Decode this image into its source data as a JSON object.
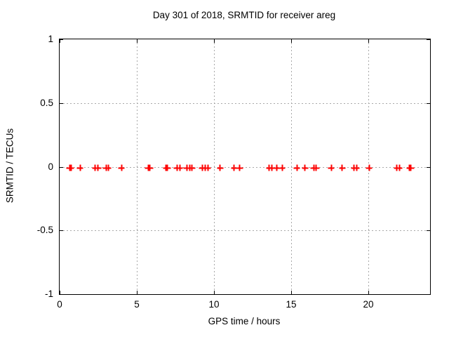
{
  "chart_data": {
    "type": "scatter",
    "title": "Day 301 of 2018, SRMTID for receiver areg",
    "xlabel": "GPS time / hours",
    "ylabel": "SRMTID / TECUs",
    "xlim": [
      0,
      24
    ],
    "ylim": [
      -1,
      1
    ],
    "xticks": [
      0,
      5,
      10,
      15,
      20
    ],
    "yticks": [
      1,
      0.5,
      0,
      -0.5,
      -1
    ],
    "grid": true,
    "legend_position": "none",
    "marker": "plus",
    "marker_color": "#ff0000",
    "x": [
      0.64,
      0.73,
      1.32,
      2.3,
      2.48,
      3.0,
      3.14,
      4.0,
      5.73,
      5.86,
      6.89,
      6.98,
      7.6,
      7.79,
      8.24,
      8.42,
      8.58,
      9.24,
      9.42,
      9.6,
      10.4,
      11.3,
      11.67,
      13.59,
      13.73,
      14.06,
      14.42,
      15.38,
      15.9,
      16.47,
      16.62,
      17.6,
      18.3,
      19.09,
      19.23,
      20.05,
      21.86,
      22.0,
      22.68,
      22.77
    ],
    "y": [
      -0.01,
      -0.01,
      -0.01,
      -0.01,
      -0.01,
      -0.01,
      -0.01,
      -0.01,
      -0.01,
      -0.01,
      -0.01,
      -0.01,
      -0.01,
      -0.01,
      -0.01,
      -0.01,
      -0.01,
      -0.01,
      -0.01,
      -0.01,
      -0.01,
      -0.01,
      -0.01,
      -0.01,
      -0.01,
      -0.01,
      -0.01,
      -0.01,
      -0.01,
      -0.01,
      -0.01,
      -0.01,
      -0.01,
      -0.01,
      -0.01,
      -0.01,
      -0.01,
      -0.01,
      -0.01,
      -0.01
    ]
  }
}
